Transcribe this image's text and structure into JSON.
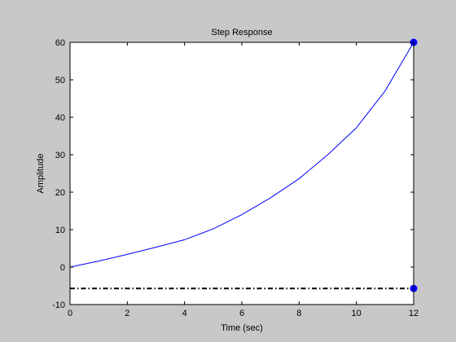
{
  "chart_data": {
    "type": "line",
    "title": "Step Response",
    "xlabel": "Time (sec)",
    "ylabel": "Amplitude",
    "xlim": [
      0,
      12
    ],
    "ylim": [
      -10,
      60
    ],
    "x_ticks": [
      0,
      2,
      4,
      6,
      8,
      10,
      12
    ],
    "y_ticks": [
      -10,
      0,
      10,
      20,
      30,
      40,
      50,
      60
    ],
    "grid": false,
    "colors": {
      "figure_background": "#c8c8c8",
      "plot_background": "#ffffff",
      "response_line": "#0000ff",
      "markers": "#0000ff",
      "characteristic_lines": "#000000"
    },
    "series": [
      {
        "x": [
          0,
          1,
          2,
          3,
          4,
          5,
          6,
          7,
          8,
          9,
          10,
          11,
          12
        ],
        "y": [
          0,
          1.6,
          3.4,
          5.3,
          7.3,
          10.2,
          14.0,
          18.5,
          23.6,
          30.0,
          37.2,
          47.0,
          60.0
        ]
      }
    ],
    "markers": [
      {
        "x": 12,
        "y": 60
      },
      {
        "x": 12,
        "y": -5.7
      }
    ],
    "reference_lines": {
      "steady_state_y": -5.7,
      "final_value_y": 60,
      "final_time_x": 12
    }
  }
}
